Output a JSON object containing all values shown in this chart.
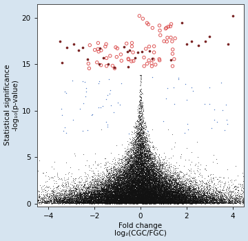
{
  "xlabel_line1": "Fold change",
  "xlabel_line2": "log₂(CGC/FGC)",
  "ylabel_line1": "Statistical significance",
  "ylabel_line2": "-log₁₀(p-value)",
  "xlim": [
    -4.5,
    4.5
  ],
  "ylim": [
    -0.3,
    21.5
  ],
  "xticks": [
    -4,
    -2,
    0,
    2,
    4
  ],
  "yticks": [
    0,
    5,
    10,
    15,
    20
  ],
  "background_color": "#d6e4f0",
  "plot_bg_color": "#ffffff",
  "black_color": "#111111",
  "blue_color": "#3a6bbf",
  "red_open_color": "#dd5555",
  "red_filled_color": "#7a2525",
  "seed": 42
}
